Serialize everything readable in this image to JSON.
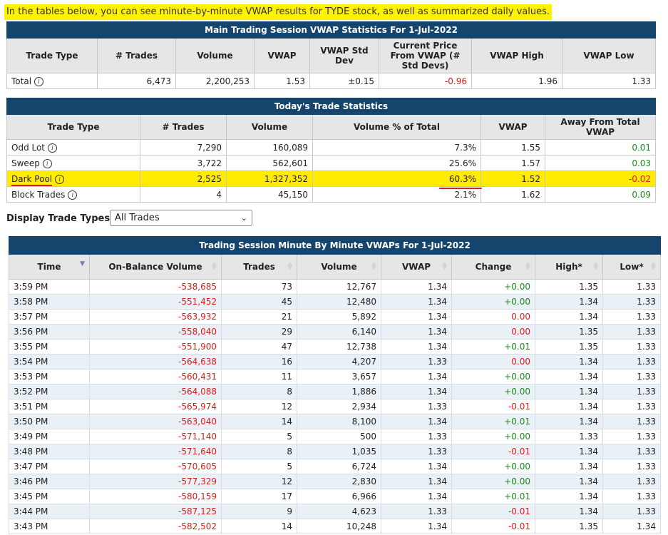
{
  "intro": "In the tables below, you can see minute-by-minute VWAP results for TYDE stock, as well as summarized daily values.",
  "main_session": {
    "title": "Main Trading Session VWAP Statistics For 1-Jul-2022",
    "headers": [
      "Trade Type",
      "# Trades",
      "Volume",
      "VWAP",
      "VWAP Std Dev",
      "Current Price From VWAP (# Std Devs)",
      "VWAP High",
      "VWAP Low"
    ],
    "row": {
      "type": "Total",
      "trades": "6,473",
      "volume": "2,200,253",
      "vwap": "1.53",
      "std": "±0.15",
      "current": "-0.96",
      "high": "1.96",
      "low": "1.33"
    }
  },
  "today": {
    "title": "Today's Trade Statistics",
    "headers": [
      "Trade Type",
      "# Trades",
      "Volume",
      "Volume % of Total",
      "VWAP",
      "Away From Total VWAP"
    ],
    "rows": [
      {
        "type": "Odd Lot",
        "trades": "7,290",
        "volume": "160,089",
        "pct": "7.3%",
        "vwap": "1.55",
        "away": "0.01"
      },
      {
        "type": "Sweep",
        "trades": "3,722",
        "volume": "562,601",
        "pct": "25.6%",
        "vwap": "1.57",
        "away": "0.03"
      },
      {
        "type": "Dark Pool",
        "trades": "2,525",
        "volume": "1,327,352",
        "pct": "60.3%",
        "vwap": "1.52",
        "away": "-0.02"
      },
      {
        "type": "Block Trades",
        "trades": "4",
        "volume": "45,150",
        "pct": "2.1%",
        "vwap": "1.62",
        "away": "0.09"
      }
    ]
  },
  "filter": {
    "label": "Display Trade Types:",
    "selected": "All Trades"
  },
  "minute": {
    "title": "Trading Session Minute By Minute VWAPs For 1-Jul-2022",
    "headers": [
      "Time",
      "On-Balance Volume",
      "Trades",
      "Volume",
      "VWAP",
      "Change",
      "High*",
      "Low*"
    ],
    "rows": [
      {
        "time": "3:59 PM",
        "obv": "-538,685",
        "trades": "73",
        "volume": "12,767",
        "vwap": "1.34",
        "change": "+0.00",
        "high": "1.35",
        "low": "1.33"
      },
      {
        "time": "3:58 PM",
        "obv": "-551,452",
        "trades": "45",
        "volume": "12,480",
        "vwap": "1.34",
        "change": "+0.00",
        "high": "1.34",
        "low": "1.33"
      },
      {
        "time": "3:57 PM",
        "obv": "-563,932",
        "trades": "21",
        "volume": "5,892",
        "vwap": "1.34",
        "change": "0.00",
        "high": "1.34",
        "low": "1.33"
      },
      {
        "time": "3:56 PM",
        "obv": "-558,040",
        "trades": "29",
        "volume": "6,140",
        "vwap": "1.34",
        "change": "0.00",
        "high": "1.35",
        "low": "1.33"
      },
      {
        "time": "3:55 PM",
        "obv": "-551,900",
        "trades": "47",
        "volume": "12,738",
        "vwap": "1.34",
        "change": "+0.01",
        "high": "1.35",
        "low": "1.33"
      },
      {
        "time": "3:54 PM",
        "obv": "-564,638",
        "trades": "16",
        "volume": "4,207",
        "vwap": "1.33",
        "change": "0.00",
        "high": "1.34",
        "low": "1.33"
      },
      {
        "time": "3:53 PM",
        "obv": "-560,431",
        "trades": "11",
        "volume": "3,657",
        "vwap": "1.34",
        "change": "+0.00",
        "high": "1.34",
        "low": "1.33"
      },
      {
        "time": "3:52 PM",
        "obv": "-564,088",
        "trades": "8",
        "volume": "1,886",
        "vwap": "1.34",
        "change": "+0.00",
        "high": "1.34",
        "low": "1.33"
      },
      {
        "time": "3:51 PM",
        "obv": "-565,974",
        "trades": "12",
        "volume": "2,934",
        "vwap": "1.33",
        "change": "-0.01",
        "high": "1.34",
        "low": "1.33"
      },
      {
        "time": "3:50 PM",
        "obv": "-563,040",
        "trades": "14",
        "volume": "8,100",
        "vwap": "1.34",
        "change": "+0.01",
        "high": "1.34",
        "low": "1.33"
      },
      {
        "time": "3:49 PM",
        "obv": "-571,140",
        "trades": "5",
        "volume": "500",
        "vwap": "1.33",
        "change": "+0.00",
        "high": "1.33",
        "low": "1.33"
      },
      {
        "time": "3:48 PM",
        "obv": "-571,640",
        "trades": "8",
        "volume": "1,035",
        "vwap": "1.33",
        "change": "-0.01",
        "high": "1.34",
        "low": "1.33"
      },
      {
        "time": "3:47 PM",
        "obv": "-570,605",
        "trades": "5",
        "volume": "6,724",
        "vwap": "1.34",
        "change": "+0.00",
        "high": "1.34",
        "low": "1.33"
      },
      {
        "time": "3:46 PM",
        "obv": "-577,329",
        "trades": "12",
        "volume": "2,830",
        "vwap": "1.34",
        "change": "+0.00",
        "high": "1.34",
        "low": "1.33"
      },
      {
        "time": "3:45 PM",
        "obv": "-580,159",
        "trades": "17",
        "volume": "6,966",
        "vwap": "1.34",
        "change": "+0.01",
        "high": "1.34",
        "low": "1.33"
      },
      {
        "time": "3:44 PM",
        "obv": "-587,125",
        "trades": "9",
        "volume": "4,623",
        "vwap": "1.33",
        "change": "-0.01",
        "high": "1.34",
        "low": "1.33"
      },
      {
        "time": "3:43 PM",
        "obv": "-582,502",
        "trades": "14",
        "volume": "10,248",
        "vwap": "1.34",
        "change": "-0.01",
        "high": "1.35",
        "low": "1.34"
      }
    ]
  },
  "colors": {
    "header_bg": "#15456d",
    "highlight": "#ffec00",
    "negative": "#dc1c1c",
    "positive": "#1a8a1a"
  }
}
